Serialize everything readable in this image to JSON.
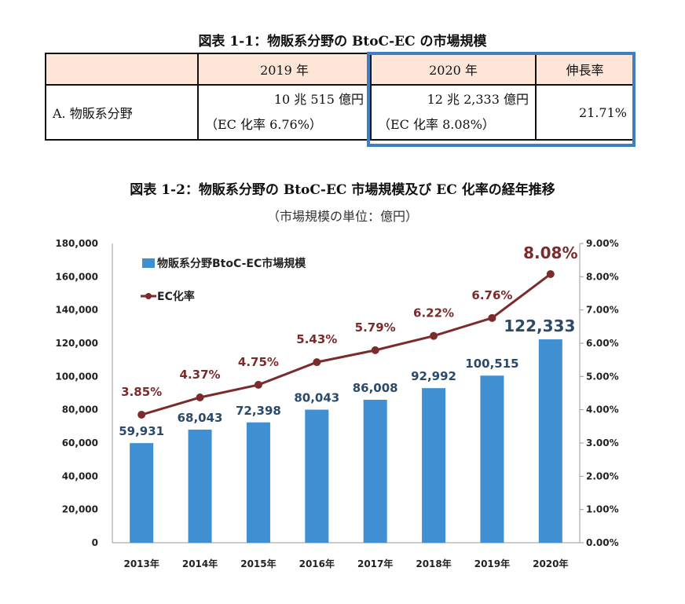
{
  "table_title": "図表 1-1：物販系分野の BtoC-EC の市場規模",
  "table": {
    "headers": [
      "",
      "2019 年",
      "2020 年",
      "伸長率"
    ],
    "row": {
      "label": "A. 物販系分野",
      "y2019_value": "10 兆 515 億円",
      "y2019_rate": "（EC 化率  6.76%）",
      "y2020_value": "12 兆 2,333 億円",
      "y2020_rate": "（EC 化率  8.08%）",
      "growth": "21.71%"
    },
    "highlight_color": "#3f7fbf",
    "header_color": "#fde5d8"
  },
  "chart_title": "図表 1-2：物販系分野の BtoC-EC 市場規模及び EC 化率の経年推移",
  "chart_subtitle": "（市場規模の単位：億円）",
  "chart_data": {
    "type": "bar+line",
    "categories": [
      "2013年",
      "2014年",
      "2015年",
      "2016年",
      "2017年",
      "2018年",
      "2019年",
      "2020年"
    ],
    "series": [
      {
        "name": "物販系分野BtoC-EC市場規模",
        "type": "bar",
        "axis": "left",
        "color": "#3f8fd2",
        "values": [
          59931,
          68043,
          72398,
          80043,
          86008,
          92992,
          100515,
          122333
        ],
        "labels": [
          "59,931",
          "68,043",
          "72,398",
          "80,043",
          "86,008",
          "92,992",
          "100,515",
          "122,333"
        ]
      },
      {
        "name": "EC化率",
        "type": "line",
        "axis": "right",
        "color": "#7b2b2b",
        "values": [
          3.85,
          4.37,
          4.75,
          5.43,
          5.79,
          6.22,
          6.76,
          8.08
        ],
        "labels": [
          "3.85%",
          "4.37%",
          "4.75%",
          "5.43%",
          "5.79%",
          "6.22%",
          "6.76%",
          "8.08%"
        ]
      }
    ],
    "left_axis": {
      "ylim": [
        0,
        180000
      ],
      "ticks": [
        "0",
        "20,000",
        "40,000",
        "60,000",
        "80,000",
        "100,000",
        "120,000",
        "140,000",
        "160,000",
        "180,000"
      ]
    },
    "right_axis": {
      "ylim": [
        0,
        9
      ],
      "ticks": [
        "0.00%",
        "1.00%",
        "2.00%",
        "3.00%",
        "4.00%",
        "5.00%",
        "6.00%",
        "7.00%",
        "8.00%",
        "9.00%"
      ]
    },
    "legend": "top-left",
    "grid": false
  }
}
